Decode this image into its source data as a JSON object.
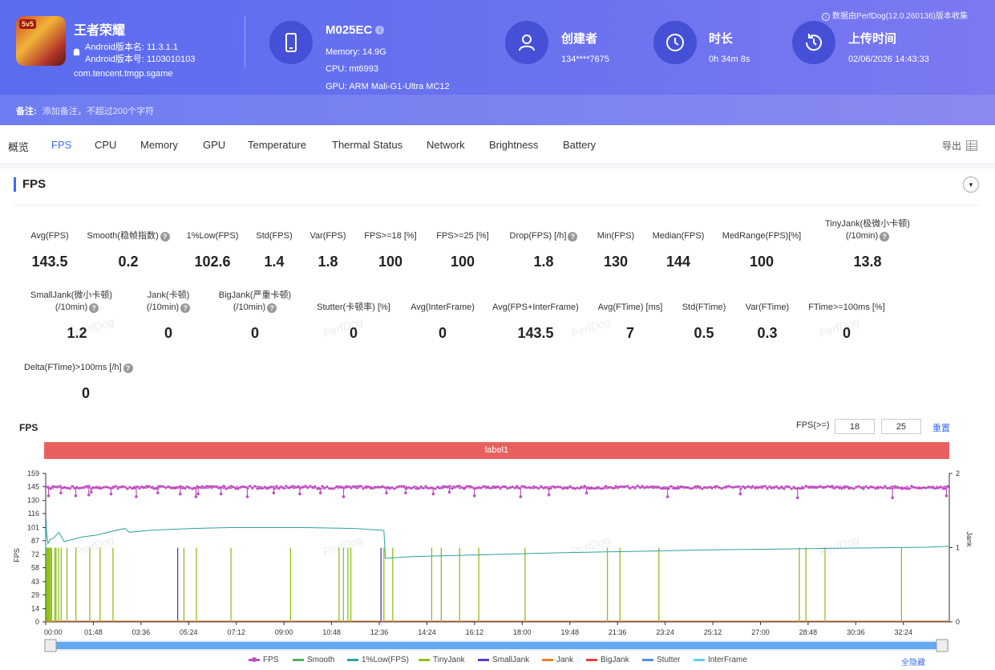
{
  "header": {
    "app": {
      "name": "王者荣耀",
      "icon_badge": "5v5",
      "version_name": "Android版本名: 11.3.1.1",
      "version_code": "Android版本号: 1103010103",
      "package": "com.tencent.tmgp.sgame"
    },
    "device": {
      "name": "M025EC",
      "memory": "Memory: 14.9G",
      "cpu": "CPU: mt6993",
      "gpu": "GPU: ARM Mali-G1-Ultra MC12"
    },
    "creator": {
      "title": "创建者",
      "value": "134****7675"
    },
    "duration": {
      "title": "时长",
      "value": "0h 34m 8s"
    },
    "upload": {
      "title": "上传时间",
      "value": "02/06/2026 14:43:33"
    },
    "source_note": "数据由PerfDog(12.0.260136)版本收集",
    "notes_label": "备注:",
    "notes_placeholder": "添加备注，不超过200个字符"
  },
  "tabs": [
    "概览",
    "FPS",
    "CPU",
    "Memory",
    "GPU",
    "Temperature",
    "Thermal Status",
    "Network",
    "Brightness",
    "Battery"
  ],
  "active_tab": "FPS",
  "export_label": "导出",
  "section_title": "FPS",
  "metrics_row1": [
    {
      "label": "Avg(FPS)",
      "value": "143.5"
    },
    {
      "label": "Smooth(稳帧指数)",
      "value": "0.2"
    },
    {
      "label": "1%Low(FPS)",
      "value": "102.6"
    },
    {
      "label": "Std(FPS)",
      "value": "1.4"
    },
    {
      "label": "Var(FPS)",
      "value": "1.8"
    },
    {
      "label": "FPS>=18 [%]",
      "value": "100"
    },
    {
      "label": "FPS>=25 [%]",
      "value": "100"
    },
    {
      "label": "Drop(FPS) [/h]",
      "value": "1.8"
    },
    {
      "label": "Min(FPS)",
      "value": "130"
    },
    {
      "label": "Median(FPS)",
      "value": "144"
    },
    {
      "label": "MedRange(FPS)[%]",
      "value": "100"
    },
    {
      "label": "TinyJank(极微小卡顿)",
      "label2": "(/10min)",
      "value": "13.8"
    }
  ],
  "metrics_row2": [
    {
      "label": "SmallJank(微小卡顿)",
      "label2": "(/10min)",
      "value": "1.2"
    },
    {
      "label": "Jank(卡顿)",
      "label2": "(/10min)",
      "value": "0"
    },
    {
      "label": "BigJank(严重卡顿)",
      "label2": "(/10min)",
      "value": "0"
    },
    {
      "label": "Stutter(卡顿率) [%]",
      "value": "0"
    },
    {
      "label": "Avg(InterFrame)",
      "value": "0"
    },
    {
      "label": "Avg(FPS+InterFrame)",
      "value": "143.5"
    },
    {
      "label": "Avg(FTime) [ms]",
      "value": "7"
    },
    {
      "label": "Std(FTime)",
      "value": "0.5"
    },
    {
      "label": "Var(FTime)",
      "value": "0.3"
    },
    {
      "label": "FTime>=100ms [%]",
      "value": "0"
    }
  ],
  "metrics_row3": [
    {
      "label": "Delta(FTime)>100ms [/h]",
      "value": "0"
    }
  ],
  "chart_controls": {
    "title": "FPS",
    "threshold_label": "FPS(>=)",
    "threshold1": "18",
    "threshold2": "25",
    "reset_label": "重置",
    "label_bar": "label1",
    "hide_all": "全隐藏",
    "watermark": "PerfDog"
  },
  "chart_data": {
    "type": "line",
    "ylabel": "FPS",
    "y2label": "Jank",
    "y_ticks": [
      0,
      14,
      29,
      43,
      58,
      72,
      87,
      101,
      116,
      130,
      145,
      159
    ],
    "y2_ticks": [
      0,
      1,
      2
    ],
    "ylim": [
      0,
      159
    ],
    "y2lim": [
      0,
      2
    ],
    "x_ticks": [
      "00:00",
      "01:48",
      "03:36",
      "05:24",
      "07:12",
      "09:00",
      "10:48",
      "12:36",
      "14:24",
      "16:12",
      "18:00",
      "19:48",
      "21:36",
      "23:24",
      "25:12",
      "27:00",
      "28:48",
      "30:36",
      "32:24"
    ],
    "duration_s": 2048,
    "fps_mean": 144,
    "fps_dips": [
      [
        130,
        135
      ],
      [
        700,
        138
      ],
      [
        1380,
        135
      ],
      [
        1980,
        136
      ],
      [
        2090,
        139
      ],
      [
        3000,
        137
      ],
      [
        4160,
        134
      ],
      [
        5150,
        138
      ],
      [
        6180,
        137
      ],
      [
        6900,
        134
      ],
      [
        7000,
        137
      ],
      [
        8050,
        137
      ],
      [
        9260,
        134
      ],
      [
        10470,
        138
      ],
      [
        11670,
        137
      ],
      [
        12620,
        138
      ],
      [
        13680,
        134
      ],
      [
        15650,
        138
      ],
      [
        16530,
        138
      ],
      [
        17800,
        137
      ],
      [
        18540,
        139
      ],
      [
        19690,
        135
      ],
      [
        21810,
        134
      ],
      [
        23110,
        136
      ],
      [
        24840,
        138
      ],
      [
        28560,
        134
      ],
      [
        31900,
        137
      ],
      [
        34530,
        133
      ],
      [
        38890,
        133
      ],
      [
        41370,
        135
      ]
    ],
    "low1_fps": [
      [
        0,
        72
      ],
      [
        5,
        110
      ],
      [
        12,
        96
      ],
      [
        30,
        84
      ],
      [
        60,
        88
      ],
      [
        110,
        90
      ],
      [
        180,
        96
      ],
      [
        250,
        86
      ],
      [
        350,
        88
      ],
      [
        500,
        91
      ],
      [
        700,
        93
      ],
      [
        900,
        97
      ],
      [
        1080,
        100
      ],
      [
        1140,
        96
      ],
      [
        1400,
        98
      ],
      [
        1700,
        99
      ],
      [
        2000,
        100
      ],
      [
        2500,
        101
      ],
      [
        3000,
        101
      ],
      [
        3500,
        101
      ],
      [
        4200,
        100
      ],
      [
        4600,
        98
      ],
      [
        4620,
        68
      ],
      [
        5000,
        70
      ],
      [
        7000,
        74
      ],
      [
        9000,
        77
      ],
      [
        10000,
        78
      ],
      [
        12000,
        80
      ],
      [
        12290,
        81
      ]
    ],
    "tiny_jank_s": [
      10,
      20,
      28,
      35,
      45,
      55,
      70,
      80,
      125,
      140,
      175,
      210,
      290,
      410,
      600,
      740,
      915,
      1880,
      2050,
      2520,
      3330,
      3990,
      4050,
      4110,
      4150,
      4560,
      4600,
      4720,
      5250,
      5380,
      5630,
      5890,
      6520,
      7640,
      7810,
      8340,
      10250,
      10340,
      10600,
      11640
    ],
    "small_jank_s": [
      1795,
      4560
    ],
    "series": [
      {
        "name": "FPS",
        "color": "#c050c0"
      },
      {
        "name": "Smooth",
        "color": "#50b060"
      },
      {
        "name": "1%Low(FPS)",
        "color": "#30a0a0"
      },
      {
        "name": "TinyJank",
        "color": "#8ec21a"
      },
      {
        "name": "SmallJank",
        "color": "#5a3ad0"
      },
      {
        "name": "Jank",
        "color": "#f08030"
      },
      {
        "name": "BigJank",
        "color": "#e04040"
      },
      {
        "name": "Stutter",
        "color": "#5090e0"
      },
      {
        "name": "InterFrame",
        "color": "#60d0f0"
      }
    ]
  }
}
